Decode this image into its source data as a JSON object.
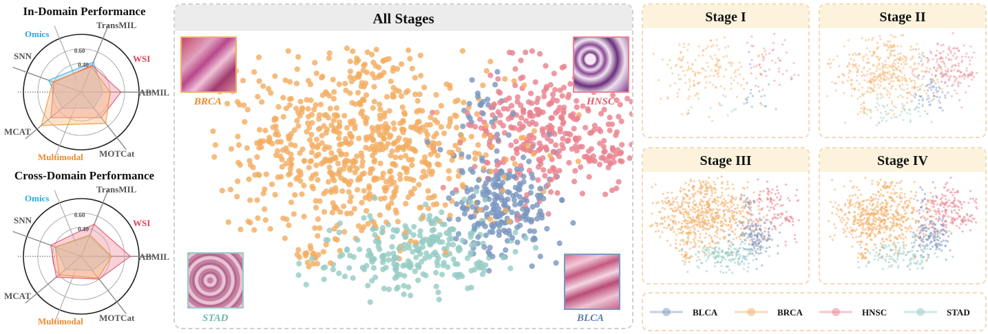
{
  "radar_in": {
    "title": "In-Domain Performance"
  },
  "radar_cross": {
    "title": "Cross-Domain Performance"
  },
  "radar_axes": [
    "TransMIL",
    "ABMIL",
    "MOTCat",
    "MCAT",
    "SNN"
  ],
  "radar_groups": {
    "omics": "Omics",
    "wsi": "WSI",
    "multimodal": "Multimodal"
  },
  "radar_ticks": [
    "0.40",
    "0.60"
  ],
  "tsne_main": {
    "title": "All Stages"
  },
  "stages": [
    "Stage I",
    "Stage II",
    "Stage III",
    "Stage IV"
  ],
  "cancer_labels": {
    "brca": "BRCA",
    "hnsc": "HNSC",
    "stad": "STAD",
    "blca": "BLCA"
  },
  "legend": [
    {
      "name": "BLCA",
      "color": "#7b97c0"
    },
    {
      "name": "BRCA",
      "color": "#f3ad62"
    },
    {
      "name": "HNSC",
      "color": "#e9838f"
    },
    {
      "name": "STAD",
      "color": "#96ccc4"
    }
  ],
  "colors": {
    "blca": "#7b97c0",
    "brca": "#f3ad62",
    "hnsc": "#e9838f",
    "stad": "#96ccc4",
    "omics_color": "#2aa7e0",
    "wsi_color": "#e0415a",
    "multimodal_color": "#ee8a2b"
  },
  "chart_data": [
    {
      "type": "radar",
      "title": "In-Domain Performance",
      "axes": [
        "TransMIL",
        "ABMIL",
        "MOTCat",
        "MCAT",
        "SNN"
      ],
      "ticks": [
        0.4,
        0.6
      ],
      "series": [
        {
          "name": "Omics",
          "values": [
            0.45,
            0.3,
            0.28,
            0.35,
            0.48
          ]
        },
        {
          "name": "WSI",
          "values": [
            0.4,
            0.55,
            0.45,
            0.55,
            0.4
          ]
        },
        {
          "name": "Multimodal",
          "values": [
            0.38,
            0.4,
            0.55,
            0.72,
            0.42
          ]
        }
      ]
    },
    {
      "type": "radar",
      "title": "Cross-Domain Performance",
      "axes": [
        "TransMIL",
        "ABMIL",
        "MOTCat",
        "MCAT",
        "SNN"
      ],
      "ticks": [
        0.4,
        0.6
      ],
      "series": [
        {
          "name": "Omics",
          "values": [
            0.3,
            0.4,
            0.25,
            0.28,
            0.38
          ]
        },
        {
          "name": "WSI",
          "values": [
            0.48,
            0.68,
            0.4,
            0.45,
            0.45
          ]
        },
        {
          "name": "Multimodal",
          "values": [
            0.32,
            0.42,
            0.38,
            0.4,
            0.38
          ]
        }
      ]
    },
    {
      "type": "scatter",
      "title": "All Stages",
      "series": [
        {
          "name": "BRCA"
        },
        {
          "name": "HNSC"
        },
        {
          "name": "BLCA"
        },
        {
          "name": "STAD"
        }
      ]
    }
  ]
}
